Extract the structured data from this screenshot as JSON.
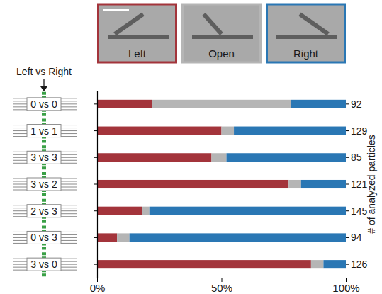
{
  "chart_data": {
    "type": "bar",
    "orientation": "horizontal",
    "stacked": true,
    "annotation": "Left vs Right",
    "categories": [
      "0 vs 0",
      "1 vs 1",
      "3 vs 3",
      "3 vs 2",
      "2 vs 3",
      "0 vs 3",
      "3 vs 0"
    ],
    "series": [
      {
        "name": "Left",
        "color": "#a3343b",
        "values": [
          22,
          50,
          46,
          77,
          18,
          8,
          86
        ]
      },
      {
        "name": "Open",
        "color": "#b5b5b5",
        "values": [
          56,
          5,
          6,
          5,
          3,
          5,
          5
        ]
      },
      {
        "name": "Right",
        "color": "#2a77b4",
        "values": [
          22,
          45,
          48,
          18,
          79,
          87,
          9
        ]
      }
    ],
    "xlim": [
      0,
      100
    ],
    "xticks": [
      {
        "value": 0,
        "label": "0%"
      },
      {
        "value": 50,
        "label": "50%"
      },
      {
        "value": 100,
        "label": "100%"
      }
    ],
    "legend": "top",
    "particles_title": "# of analyzed particles",
    "particles": [
      92,
      129,
      85,
      121,
      145,
      94,
      126
    ]
  }
}
